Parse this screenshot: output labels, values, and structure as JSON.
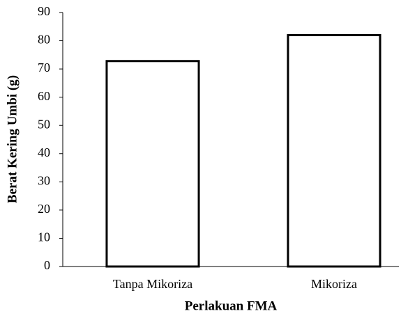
{
  "chart_data": {
    "type": "bar",
    "xlabel": "Perlakuan FMA",
    "ylabel": "Berat Kering Umbi (g)",
    "categories": [
      "Tanpa Mikoriza",
      "Mikoriza"
    ],
    "values": [
      72.8,
      82
    ],
    "color": "#ffffff",
    "edgecolor": "#000000",
    "ylim": [
      0,
      90
    ],
    "yticks": [
      0,
      10,
      20,
      30,
      40,
      50,
      60,
      70,
      80,
      90
    ],
    "grid": false
  }
}
